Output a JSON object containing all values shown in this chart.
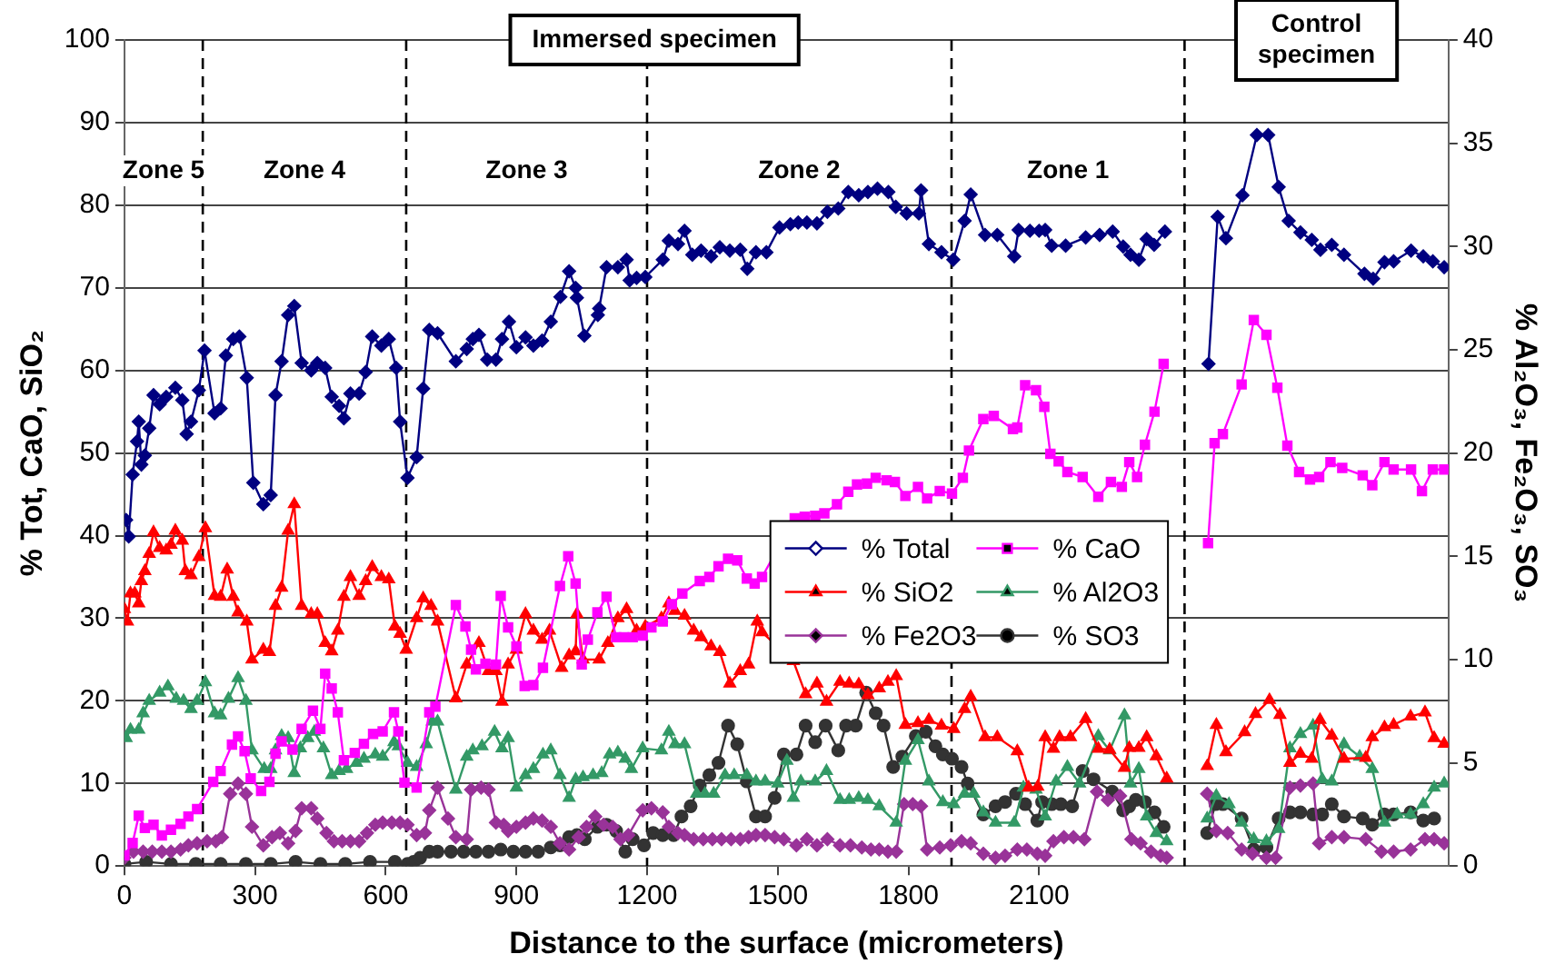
{
  "chart_data": {
    "type": "line",
    "xlabel": "Distance to the surface (micrometers)",
    "ylabel": "% Tot, CaO, SiO₂",
    "y2label": "% Al₂O₃, Fe₂O₃, SO₃",
    "xlim": [
      0,
      3040
    ],
    "xticks": [
      0,
      300,
      600,
      900,
      1200,
      1500,
      1800,
      2100
    ],
    "ylim": [
      0,
      100
    ],
    "yticks": [
      0,
      10,
      20,
      30,
      40,
      50,
      60,
      70,
      80,
      90,
      100
    ],
    "y2lim": [
      0,
      40
    ],
    "y2ticks": [
      0,
      5,
      10,
      15,
      20,
      25,
      30,
      35,
      40
    ],
    "grid": "y",
    "legend": "bottom",
    "line_style": "solid",
    "ref_lines": [
      {
        "axis": "x",
        "value": 180,
        "line_style": "dashed"
      },
      {
        "axis": "x",
        "value": 647,
        "line_style": "dashed"
      },
      {
        "axis": "x",
        "value": 1200,
        "line_style": "dashed"
      },
      {
        "axis": "x",
        "value": 1899,
        "line_style": "dashed"
      },
      {
        "axis": "x",
        "value": 2434,
        "line_style": "dashed"
      }
    ],
    "annotations": [
      "Zone 5",
      "Zone 4",
      "Zone 3",
      "Zone 2",
      "Zone 1",
      "Immersed specimen",
      "Control specimen"
    ],
    "series": [
      {
        "name": "% Total",
        "color": "#000080",
        "marker": "diamond",
        "x": [
          4,
          10,
          19,
          29,
          33,
          39,
          47,
          57,
          67,
          81,
          96,
          117,
          133,
          143,
          153,
          171,
          184,
          207,
          221,
          233,
          250,
          264,
          281,
          296,
          319,
          336,
          347,
          361,
          376,
          390,
          407,
          429,
          443,
          461,
          476,
          493,
          504,
          519,
          539,
          554,
          569,
          590,
          607,
          624,
          633,
          650,
          671,
          686,
          700,
          719,
          761,
          786,
          800,
          814,
          833,
          853,
          867,
          883,
          900,
          921,
          939,
          959,
          979,
          1001,
          1021,
          1036,
          1039,
          1056,
          1087,
          1090,
          1107,
          1133,
          1153,
          1160,
          1176,
          1196,
          1236,
          1250,
          1271,
          1286,
          1304,
          1324,
          1347,
          1367,
          1390,
          1414,
          1430,
          1450,
          1474,
          1504,
          1529,
          1547,
          1567,
          1590,
          1614,
          1639,
          1662,
          1686,
          1707,
          1729,
          1754,
          1771,
          1796,
          1824,
          1829,
          1847,
          1876,
          1903,
          1929,
          1943,
          1976,
          2004,
          2043,
          2053,
          2079,
          2100,
          2114,
          2129,
          2161,
          2207,
          2239,
          2269,
          2293,
          2310,
          2329,
          2347,
          2364,
          2389,
          2434,
          2489,
          2510,
          2529,
          2567,
          2600,
          2626,
          2650,
          2673,
          2700,
          2726,
          2746,
          2772,
          2800,
          2847,
          2867,
          2893,
          2914,
          2954,
          2982,
          3004,
          3030
        ],
        "values": [
          41.9,
          39.9,
          47.4,
          51.4,
          53.8,
          48.6,
          49.7,
          53.0,
          57.0,
          55.9,
          56.8,
          57.9,
          56.4,
          52.3,
          53.8,
          57.6,
          62.4,
          54.8,
          55.4,
          61.8,
          63.8,
          64.1,
          59.1,
          46.4,
          43.8,
          44.9,
          57.0,
          61.1,
          66.7,
          67.8,
          60.9,
          60.0,
          60.9,
          60.3,
          56.8,
          55.7,
          54.2,
          57.2,
          57.2,
          59.8,
          64.1,
          63.0,
          63.8,
          60.3,
          53.8,
          47.0,
          49.5,
          57.8,
          64.9,
          64.5,
          61.1,
          62.6,
          63.8,
          64.3,
          61.3,
          61.3,
          63.8,
          65.9,
          62.8,
          64.0,
          63.0,
          63.6,
          65.9,
          68.9,
          72.0,
          70.0,
          68.8,
          64.2,
          66.7,
          67.5,
          72.5,
          72.5,
          73.4,
          70.9,
          71.2,
          71.3,
          73.4,
          75.7,
          75.3,
          76.9,
          74.0,
          74.5,
          73.8,
          74.9,
          74.5,
          74.6,
          72.3,
          74.3,
          74.3,
          77.3,
          77.7,
          77.9,
          77.9,
          77.8,
          79.2,
          79.6,
          81.6,
          81.2,
          81.6,
          82.0,
          81.6,
          79.8,
          79.0,
          79.0,
          81.8,
          75.3,
          74.3,
          73.4,
          78.1,
          81.3,
          76.4,
          76.4,
          73.8,
          77.0,
          76.9,
          76.9,
          77.0,
          75.1,
          75.1,
          76.1,
          76.4,
          76.8,
          75.0,
          74.0,
          73.4,
          75.9,
          75.2,
          76.8,
          null,
          60.8,
          78.6,
          76.0,
          81.2,
          88.5,
          88.5,
          82.2,
          78.1,
          76.7,
          75.8,
          74.6,
          75.2,
          74.0,
          71.7,
          71.1,
          73.1,
          73.2,
          74.5,
          73.8,
          73.2,
          72.5
        ]
      },
      {
        "name": "% CaO",
        "color": "#ff00ff",
        "marker": "square",
        "x": [
          0,
          19,
          33,
          47,
          67,
          86,
          107,
          129,
          147,
          167,
          204,
          221,
          247,
          261,
          276,
          290,
          314,
          333,
          347,
          361,
          386,
          407,
          433,
          450,
          461,
          476,
          490,
          504,
          529,
          550,
          571,
          593,
          619,
          629,
          643,
          671,
          700,
          714,
          761,
          783,
          796,
          807,
          829,
          853,
          864,
          881,
          900,
          919,
          939,
          961,
          1000,
          1019,
          1036,
          1050,
          1064,
          1086,
          1107,
          1129,
          1147,
          1167,
          1190,
          1210,
          1236,
          1257,
          1281,
          1321,
          1343,
          1364,
          1386,
          1407,
          1429,
          1447,
          1464,
          1539,
          1562,
          1586,
          1607,
          1636,
          1662,
          1682,
          1705,
          1725,
          1750,
          1769,
          1793,
          1822,
          1843,
          1872,
          1900,
          1925,
          1939,
          1972,
          1996,
          2040,
          2050,
          2068,
          2093,
          2112,
          2126,
          2145,
          2165,
          2200,
          2236,
          2265,
          2290,
          2307,
          2325,
          2343,
          2365,
          2386,
          2434,
          2488,
          2503,
          2522,
          2565,
          2593,
          2622,
          2647,
          2670,
          2697,
          2722,
          2743,
          2769,
          2796,
          2843,
          2865,
          2893,
          2914,
          2954,
          2979,
          3004,
          3030
        ],
        "values": [
          1.3,
          2.8,
          6.1,
          4.6,
          5.0,
          3.7,
          4.4,
          5.1,
          6.0,
          6.9,
          10.2,
          11.5,
          14.7,
          15.7,
          13.9,
          10.6,
          9.1,
          10.2,
          13.6,
          15.1,
          14.1,
          16.6,
          18.8,
          16.6,
          23.3,
          21.5,
          18.6,
          12.8,
          13.7,
          14.8,
          16.0,
          16.3,
          18.6,
          16.3,
          10.1,
          9.5,
          18.6,
          19.3,
          31.6,
          29.0,
          26.2,
          23.8,
          24.5,
          24.4,
          32.7,
          28.9,
          26.6,
          21.8,
          21.9,
          24.0,
          33.9,
          37.5,
          34.2,
          24.4,
          27.4,
          30.7,
          32.6,
          27.7,
          27.7,
          27.7,
          27.9,
          28.9,
          29.6,
          31.7,
          33.0,
          34.5,
          35.0,
          36.3,
          37.2,
          37.0,
          34.8,
          34.2,
          35.0,
          42.1,
          42.3,
          42.4,
          42.7,
          43.8,
          45.3,
          46.2,
          46.3,
          47.0,
          46.7,
          46.5,
          44.8,
          45.9,
          44.5,
          45.4,
          45.1,
          47.0,
          50.3,
          54.1,
          54.5,
          52.9,
          53.1,
          58.2,
          57.6,
          55.6,
          49.9,
          49.0,
          47.7,
          47.1,
          44.7,
          46.5,
          45.9,
          48.9,
          47.1,
          51.0,
          55.0,
          60.8,
          null,
          39.1,
          51.2,
          52.3,
          58.3,
          66.1,
          64.3,
          57.9,
          50.9,
          47.7,
          46.8,
          47.1,
          48.9,
          48.2,
          47.3,
          46.1,
          48.9,
          48.0,
          48.0,
          45.4,
          48.0,
          48.0
        ]
      },
      {
        "name": "% SiO2",
        "color": "#ff0000",
        "marker": "triangle",
        "x": [
          0,
          7,
          14,
          24,
          33,
          39,
          47,
          57,
          67,
          81,
          96,
          107,
          117,
          133,
          140,
          153,
          171,
          186,
          207,
          221,
          236,
          250,
          261,
          281,
          293,
          319,
          333,
          347,
          361,
          376,
          390,
          407,
          429,
          443,
          461,
          476,
          490,
          504,
          519,
          539,
          554,
          569,
          590,
          607,
          621,
          633,
          647,
          671,
          686,
          704,
          719,
          761,
          786,
          814,
          836,
          853,
          867,
          881,
          900,
          921,
          939,
          959,
          976,
          1004,
          1021,
          1036,
          1039,
          1053,
          1090,
          1110,
          1133,
          1153,
          1176,
          1196,
          1233,
          1250,
          1264,
          1286,
          1307,
          1324,
          1347,
          1367,
          1390,
          1414,
          1433,
          1453,
          1464,
          1536,
          1564,
          1590,
          1612,
          1643,
          1664,
          1686,
          1707,
          1733,
          1753,
          1772,
          1793,
          1822,
          1847,
          1876,
          1904,
          1929,
          1943,
          1976,
          2004,
          2050,
          2076,
          2097,
          2114,
          2133,
          2147,
          2172,
          2207,
          2236,
          2262,
          2296,
          2307,
          2329,
          2347,
          2369,
          2393,
          2434,
          2486,
          2507,
          2529,
          2572,
          2597,
          2629,
          2653,
          2676,
          2700,
          2726,
          2745,
          2772,
          2800,
          2850,
          2865,
          2893,
          2914,
          2953,
          2986,
          3007,
          3030
        ],
        "values": [
          31.1,
          29.6,
          33.0,
          33.0,
          31.8,
          34.5,
          35.7,
          37.8,
          40.4,
          38.5,
          38.2,
          38.9,
          40.6,
          39.4,
          35.7,
          35.2,
          37.4,
          40.9,
          32.7,
          32.6,
          35.9,
          32.6,
          30.7,
          29.6,
          25.0,
          26.2,
          25.9,
          31.5,
          33.7,
          40.6,
          43.8,
          31.5,
          30.5,
          30.5,
          27.0,
          26.0,
          28.5,
          32.6,
          35.0,
          32.7,
          34.5,
          36.2,
          35.0,
          34.7,
          29.0,
          28.1,
          26.2,
          30.0,
          32.4,
          31.5,
          29.6,
          20.3,
          24.4,
          27.0,
          23.6,
          23.6,
          19.9,
          24.4,
          26.2,
          30.5,
          28.5,
          27.4,
          28.5,
          24.0,
          25.5,
          26.0,
          30.5,
          25.0,
          25.0,
          27.0,
          30.0,
          31.1,
          28.5,
          29.0,
          30.0,
          31.8,
          30.9,
          30.3,
          28.5,
          27.7,
          26.6,
          25.9,
          22.1,
          23.6,
          24.4,
          29.6,
          28.3,
          24.8,
          20.8,
          22.1,
          19.9,
          22.3,
          22.1,
          22.0,
          20.7,
          21.5,
          22.3,
          23.0,
          17.1,
          17.3,
          17.7,
          17.0,
          16.6,
          19.0,
          20.5,
          15.6,
          15.6,
          13.9,
          9.5,
          9.6,
          15.6,
          14.2,
          15.6,
          15.6,
          17.8,
          14.2,
          14.1,
          11.9,
          14.3,
          14.3,
          15.6,
          13.3,
          10.6,
          null,
          12.1,
          17.1,
          13.8,
          16.2,
          18.4,
          20.1,
          18.3,
          12.5,
          13.6,
          13.0,
          17.7,
          15.8,
          13.0,
          13.1,
          15.6,
          16.8,
          17.1,
          18.1,
          18.6,
          15.5,
          14.8
        ]
      },
      {
        "name": "% Al2O3",
        "color": "#339966",
        "marker": "triangle",
        "axis": "y2",
        "x": [
          4,
          14,
          33,
          43,
          57,
          81,
          100,
          119,
          136,
          153,
          167,
          186,
          207,
          221,
          239,
          261,
          279,
          293,
          321,
          336,
          347,
          361,
          376,
          390,
          404,
          421,
          436,
          457,
          476,
          493,
          510,
          533,
          550,
          576,
          593,
          619,
          629,
          650,
          671,
          693,
          707,
          719,
          761,
          786,
          800,
          821,
          850,
          867,
          881,
          900,
          921,
          939,
          961,
          979,
          1000,
          1021,
          1036,
          1053,
          1076,
          1096,
          1114,
          1133,
          1150,
          1164,
          1190,
          1233,
          1250,
          1264,
          1286,
          1314,
          1333,
          1353,
          1379,
          1400,
          1429,
          1450,
          1471,
          1500,
          1521,
          1536,
          1553,
          1586,
          1612,
          1643,
          1664,
          1686,
          1707,
          1733,
          1772,
          1793,
          1822,
          1847,
          1879,
          1904,
          1929,
          1950,
          1972,
          2000,
          2043,
          2064,
          2093,
          2114,
          2139,
          2165,
          2193,
          2236,
          2262,
          2296,
          2310,
          2329,
          2347,
          2369,
          2393,
          2434,
          2486,
          2507,
          2536,
          2565,
          2593,
          2622,
          2650,
          2676,
          2700,
          2729,
          2750,
          2772,
          2800,
          2836,
          2865,
          2893,
          2922,
          2953,
          2982,
          3007,
          3030
        ],
        "values": [
          6.2,
          6.6,
          6.6,
          7.4,
          8.0,
          8.4,
          8.7,
          8.1,
          8.0,
          7.6,
          8.0,
          8.9,
          7.4,
          7.3,
          8.1,
          9.1,
          8.0,
          5.6,
          4.7,
          4.7,
          5.6,
          6.3,
          6.2,
          4.5,
          5.7,
          6.2,
          6.5,
          5.7,
          4.4,
          4.6,
          4.7,
          5.0,
          5.2,
          5.4,
          5.3,
          6.0,
          5.8,
          5.0,
          4.8,
          5.9,
          7.0,
          7.0,
          3.7,
          5.3,
          5.6,
          5.8,
          6.5,
          5.7,
          6.2,
          3.8,
          4.4,
          4.7,
          5.4,
          5.6,
          4.4,
          3.3,
          4.2,
          4.3,
          4.4,
          4.5,
          5.4,
          5.5,
          5.2,
          4.7,
          5.7,
          5.6,
          6.5,
          5.9,
          5.9,
          3.5,
          3.5,
          3.5,
          4.4,
          4.4,
          4.4,
          4.1,
          4.1,
          4.0,
          5.1,
          3.3,
          4.1,
          4.1,
          4.6,
          3.2,
          3.2,
          3.3,
          3.2,
          2.9,
          2.1,
          5.1,
          6.1,
          4.1,
          3.1,
          3.0,
          3.5,
          3.5,
          2.6,
          2.1,
          2.1,
          3.8,
          3.7,
          2.4,
          4.1,
          4.8,
          4.0,
          6.3,
          5.6,
          7.3,
          4.0,
          4.7,
          2.4,
          1.6,
          1.2,
          null,
          2.3,
          3.4,
          3.0,
          2.1,
          1.3,
          1.2,
          1.8,
          5.7,
          6.4,
          6.8,
          4.2,
          4.1,
          5.9,
          5.3,
          4.7,
          2.1,
          2.5,
          2.5,
          3.0,
          3.8,
          4.0
        ]
      },
      {
        "name": "% Fe2O3",
        "color": "#993399",
        "marker": "diamond",
        "axis": "y2",
        "x": [
          0,
          21,
          43,
          64,
          86,
          107,
          129,
          147,
          167,
          190,
          210,
          224,
          243,
          261,
          279,
          293,
          319,
          339,
          357,
          376,
          393,
          407,
          429,
          443,
          464,
          481,
          500,
          519,
          539,
          557,
          576,
          593,
          614,
          633,
          650,
          671,
          690,
          700,
          719,
          743,
          761,
          786,
          796,
          819,
          836,
          853,
          871,
          881,
          900,
          921,
          939,
          959,
          979,
          1000,
          1021,
          1043,
          1061,
          1081,
          1100,
          1121,
          1139,
          1157,
          1190,
          1210,
          1236,
          1250,
          1271,
          1286,
          1307,
          1329,
          1350,
          1371,
          1393,
          1414,
          1433,
          1450,
          1471,
          1493,
          1514,
          1543,
          1567,
          1590,
          1614,
          1643,
          1667,
          1693,
          1714,
          1733,
          1753,
          1772,
          1790,
          1810,
          1829,
          1843,
          1872,
          1897,
          1922,
          1943,
          1972,
          2000,
          2022,
          2050,
          2072,
          2096,
          2114,
          2133,
          2157,
          2179,
          2204,
          2233,
          2258,
          2286,
          2312,
          2333,
          2357,
          2379,
          2393,
          2434,
          2486,
          2507,
          2533,
          2565,
          2590,
          2622,
          2643,
          2676,
          2700,
          2729,
          2743,
          2772,
          2800,
          2850,
          2886,
          2914,
          2953,
          2986,
          3007,
          3030
        ],
        "values": [
          0.4,
          0.7,
          0.7,
          0.7,
          0.7,
          0.7,
          0.8,
          1.0,
          1.1,
          1.2,
          1.2,
          1.4,
          3.5,
          4.0,
          3.5,
          1.9,
          1.0,
          1.4,
          1.6,
          1.1,
          1.7,
          2.8,
          2.8,
          2.3,
          1.6,
          1.2,
          1.2,
          1.2,
          1.2,
          1.6,
          2.0,
          2.1,
          2.1,
          2.1,
          2.0,
          1.5,
          1.6,
          2.7,
          3.8,
          2.3,
          1.4,
          1.3,
          3.7,
          3.8,
          3.7,
          2.1,
          2.0,
          1.7,
          1.9,
          2.1,
          2.3,
          2.2,
          1.9,
          1.1,
          0.8,
          1.4,
          1.9,
          2.4,
          2.0,
          1.9,
          1.3,
          1.5,
          2.7,
          2.8,
          2.6,
          1.9,
          1.6,
          1.5,
          1.3,
          1.3,
          1.3,
          1.3,
          1.3,
          1.3,
          1.4,
          1.5,
          1.5,
          1.4,
          1.3,
          1.0,
          1.3,
          1.0,
          1.3,
          1.0,
          1.0,
          0.9,
          0.8,
          0.8,
          0.7,
          0.7,
          3.0,
          3.0,
          2.9,
          0.8,
          0.9,
          1.0,
          1.2,
          1.1,
          0.6,
          0.4,
          0.5,
          0.8,
          0.8,
          0.6,
          0.5,
          1.2,
          1.4,
          1.4,
          1.3,
          3.6,
          3.2,
          3.4,
          1.3,
          1.1,
          0.7,
          0.5,
          0.4,
          null,
          3.5,
          1.7,
          1.6,
          0.8,
          0.6,
          0.4,
          0.4,
          3.8,
          3.9,
          4.0,
          1.1,
          1.4,
          1.4,
          1.3,
          0.7,
          0.7,
          0.8,
          1.3,
          1.3,
          1.1
        ]
      },
      {
        "name": "% SO3",
        "color": "#333333",
        "marker": "circle",
        "axis": "y2",
        "x": [
          0,
          50,
          107,
          164,
          221,
          279,
          336,
          393,
          450,
          507,
          564,
          621,
          650,
          664,
          679,
          700,
          719,
          750,
          779,
          807,
          836,
          864,
          893,
          921,
          950,
          979,
          1000,
          1021,
          1039,
          1057,
          1086,
          1107,
          1129,
          1150,
          1167,
          1193,
          1214,
          1236,
          1261,
          1279,
          1300,
          1321,
          1343,
          1364,
          1386,
          1407,
          1429,
          1450,
          1471,
          1493,
          1514,
          1543,
          1564,
          1586,
          1610,
          1639,
          1657,
          1679,
          1703,
          1725,
          1743,
          1765,
          1786,
          1817,
          1840,
          1862,
          1879,
          1900,
          1922,
          1936,
          1972,
          2000,
          2022,
          2047,
          2068,
          2096,
          2107,
          2129,
          2150,
          2176,
          2200,
          2225,
          2268,
          2293,
          2307,
          2322,
          2343,
          2365,
          2386,
          2434,
          2486,
          2505,
          2522,
          2565,
          2593,
          2622,
          2650,
          2676,
          2700,
          2729,
          2750,
          2772,
          2800,
          2843,
          2865,
          2893,
          2914,
          2953,
          2982,
          3007
        ],
        "values": [
          0.1,
          0.2,
          0.1,
          0.1,
          0.1,
          0.1,
          0.1,
          0.2,
          0.1,
          0.1,
          0.2,
          0.2,
          0.1,
          0.2,
          0.4,
          0.7,
          0.7,
          0.7,
          0.7,
          0.7,
          0.7,
          0.8,
          0.7,
          0.7,
          0.7,
          0.9,
          1.0,
          1.4,
          1.5,
          1.3,
          1.9,
          2.0,
          1.7,
          0.7,
          1.3,
          1.0,
          1.6,
          1.5,
          1.5,
          2.4,
          2.9,
          3.9,
          4.4,
          5.0,
          6.8,
          5.9,
          4.1,
          2.4,
          2.4,
          3.3,
          5.4,
          5.4,
          6.8,
          6.0,
          6.8,
          5.6,
          6.8,
          6.8,
          8.4,
          7.4,
          6.8,
          4.8,
          5.3,
          6.3,
          6.5,
          5.8,
          5.4,
          5.2,
          4.8,
          4.0,
          2.5,
          2.9,
          3.1,
          3.5,
          3.0,
          2.2,
          3.1,
          3.0,
          3.0,
          2.9,
          4.6,
          4.2,
          3.6,
          2.7,
          2.9,
          3.2,
          3.1,
          2.6,
          1.9,
          null,
          1.6,
          3.0,
          3.0,
          2.3,
          0.8,
          0.9,
          2.3,
          2.6,
          2.6,
          2.5,
          2.5,
          3.0,
          2.4,
          2.3,
          2.0,
          2.5,
          2.5,
          2.6,
          2.2,
          2.3
        ]
      }
    ]
  }
}
